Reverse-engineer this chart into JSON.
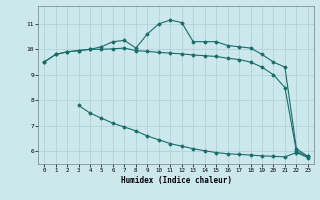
{
  "xlabel": "Humidex (Indice chaleur)",
  "bg_color": "#cce8ec",
  "grid_color": "#aacfd4",
  "line_color": "#1a6e6a",
  "xlim": [
    -0.5,
    23.5
  ],
  "ylim": [
    5.5,
    11.7
  ],
  "yticks": [
    6,
    7,
    8,
    9,
    10,
    11
  ],
  "xticks": [
    0,
    1,
    2,
    3,
    4,
    5,
    6,
    7,
    8,
    9,
    10,
    11,
    12,
    13,
    14,
    15,
    16,
    17,
    18,
    19,
    20,
    21,
    22,
    23
  ],
  "line1_x": [
    0,
    1,
    2,
    3,
    4,
    5,
    6,
    7,
    8,
    9,
    10,
    11,
    12,
    13,
    14,
    15,
    16,
    17,
    18,
    19,
    20,
    21,
    22,
    23
  ],
  "line1_y": [
    9.5,
    9.8,
    9.9,
    9.95,
    10.0,
    10.1,
    10.3,
    10.35,
    10.05,
    10.6,
    11.0,
    11.15,
    11.05,
    10.3,
    10.3,
    10.3,
    10.15,
    10.1,
    10.05,
    9.8,
    9.5,
    9.3,
    6.1,
    5.8
  ],
  "line2_x": [
    3,
    4,
    5,
    6,
    7,
    8,
    9,
    10,
    11,
    12,
    13,
    14,
    15,
    16,
    17,
    18,
    19,
    20,
    21,
    22,
    23
  ],
  "line2_y": [
    7.8,
    7.5,
    7.3,
    7.1,
    6.95,
    6.8,
    6.6,
    6.45,
    6.3,
    6.2,
    6.1,
    6.02,
    5.95,
    5.9,
    5.88,
    5.85,
    5.82,
    5.8,
    5.78,
    5.95,
    5.75
  ],
  "line3_x": [
    0,
    1,
    2,
    3,
    4,
    5,
    6,
    7,
    8,
    9,
    10,
    11,
    12,
    13,
    14,
    15,
    16,
    17,
    18,
    19,
    20,
    21,
    22,
    23
  ],
  "line3_y": [
    9.5,
    9.8,
    9.9,
    9.95,
    10.0,
    10.0,
    10.02,
    10.05,
    9.95,
    9.92,
    9.88,
    9.85,
    9.82,
    9.78,
    9.75,
    9.72,
    9.65,
    9.6,
    9.5,
    9.3,
    9.0,
    8.5,
    6.0,
    5.8
  ]
}
